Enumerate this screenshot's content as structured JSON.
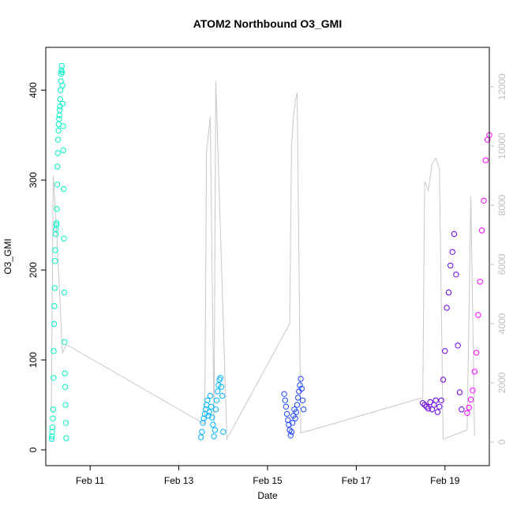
{
  "chart_data": {
    "type": "scatter",
    "title": "ATOM2 Northbound O3_GMI",
    "xlabel": "Date",
    "ylabel": "O3_GMI",
    "x_axis": {
      "kind": "date",
      "range": [
        "2017-02-10",
        "2017-02-20"
      ],
      "ticks": [
        {
          "value": "2017-02-11",
          "label": "Feb 11"
        },
        {
          "value": "2017-02-13",
          "label": "Feb 13"
        },
        {
          "value": "2017-02-15",
          "label": "Feb 15"
        },
        {
          "value": "2017-02-17",
          "label": "Feb 17"
        },
        {
          "value": "2017-02-19",
          "label": "Feb 19"
        }
      ]
    },
    "y_axis": {
      "range": [
        0,
        430
      ],
      "ticks": [
        0,
        100,
        200,
        300,
        400
      ]
    },
    "y2_axis": {
      "range": [
        0,
        12800
      ],
      "ticks": [
        0,
        2000,
        4000,
        6000,
        8000,
        10000,
        12000
      ],
      "color": "#bebebe"
    },
    "grid": false,
    "legend": "none",
    "series": [
      {
        "color": "#00f5c8",
        "points": [
          [
            "2017-02-10T03:10",
            12
          ],
          [
            "2017-02-10T03:20",
            15
          ],
          [
            "2017-02-10T03:30",
            20
          ],
          [
            "2017-02-10T03:40",
            25
          ],
          [
            "2017-02-10T03:50",
            35
          ],
          [
            "2017-02-10T04:00",
            45
          ],
          [
            "2017-02-10T04:10",
            80
          ],
          [
            "2017-02-10T04:20",
            110
          ],
          [
            "2017-02-10T04:30",
            140
          ],
          [
            "2017-02-10T04:40",
            160
          ],
          [
            "2017-02-10T04:50",
            180
          ],
          [
            "2017-02-10T05:00",
            210
          ],
          [
            "2017-02-10T05:10",
            222
          ],
          [
            "2017-02-10T05:20",
            240
          ],
          [
            "2017-02-10T05:30",
            245
          ],
          [
            "2017-02-10T05:40",
            250
          ],
          [
            "2017-02-10T05:50",
            252
          ],
          [
            "2017-02-10T06:00",
            268
          ],
          [
            "2017-02-10T06:10",
            295
          ],
          [
            "2017-02-10T06:20",
            315
          ],
          [
            "2017-02-10T06:30",
            330
          ],
          [
            "2017-02-10T06:40",
            345
          ],
          [
            "2017-02-10T06:50",
            355
          ],
          [
            "2017-02-10T07:00",
            362
          ],
          [
            "2017-02-10T07:10",
            368
          ],
          [
            "2017-02-10T07:20",
            372
          ],
          [
            "2017-02-10T07:30",
            378
          ],
          [
            "2017-02-10T07:40",
            382
          ],
          [
            "2017-02-10T07:50",
            390
          ],
          [
            "2017-02-10T08:00",
            400
          ],
          [
            "2017-02-10T08:10",
            410
          ],
          [
            "2017-02-10T08:20",
            418
          ],
          [
            "2017-02-10T08:30",
            422
          ],
          [
            "2017-02-10T08:40",
            427
          ],
          [
            "2017-02-10T08:50",
            420
          ],
          [
            "2017-02-10T09:00",
            405
          ],
          [
            "2017-02-10T09:10",
            385
          ],
          [
            "2017-02-10T09:20",
            360
          ],
          [
            "2017-02-10T09:30",
            333
          ],
          [
            "2017-02-10T09:40",
            290
          ],
          [
            "2017-02-10T09:50",
            235
          ],
          [
            "2017-02-10T10:00",
            175
          ],
          [
            "2017-02-10T10:10",
            120
          ],
          [
            "2017-02-10T10:20",
            85
          ],
          [
            "2017-02-10T10:30",
            70
          ],
          [
            "2017-02-10T10:40",
            50
          ],
          [
            "2017-02-10T10:50",
            30
          ],
          [
            "2017-02-10T11:00",
            13
          ]
        ]
      },
      {
        "color": "#00b4ff",
        "points": [
          [
            "2017-02-13T12:00",
            14
          ],
          [
            "2017-02-13T12:30",
            20
          ],
          [
            "2017-02-13T13:00",
            30
          ],
          [
            "2017-02-13T13:30",
            35
          ],
          [
            "2017-02-13T14:00",
            40
          ],
          [
            "2017-02-13T14:30",
            45
          ],
          [
            "2017-02-13T15:00",
            50
          ],
          [
            "2017-02-13T15:30",
            55
          ],
          [
            "2017-02-13T16:00",
            38
          ],
          [
            "2017-02-13T16:30",
            42
          ],
          [
            "2017-02-13T17:00",
            60
          ],
          [
            "2017-02-13T17:30",
            48
          ],
          [
            "2017-02-13T18:00",
            36
          ],
          [
            "2017-02-13T18:30",
            28
          ],
          [
            "2017-02-13T19:00",
            15
          ],
          [
            "2017-02-13T19:30",
            22
          ],
          [
            "2017-02-13T20:00",
            45
          ],
          [
            "2017-02-13T20:30",
            55
          ],
          [
            "2017-02-13T21:00",
            65
          ],
          [
            "2017-02-13T21:30",
            72
          ],
          [
            "2017-02-13T22:00",
            78
          ],
          [
            "2017-02-13T22:30",
            80
          ],
          [
            "2017-02-13T23:00",
            70
          ],
          [
            "2017-02-13T23:30",
            60
          ],
          [
            "2017-02-14T00:00",
            20
          ]
        ]
      },
      {
        "color": "#1e46ff",
        "points": [
          [
            "2017-02-15T09:00",
            62
          ],
          [
            "2017-02-15T09:30",
            55
          ],
          [
            "2017-02-15T10:00",
            48
          ],
          [
            "2017-02-15T10:30",
            40
          ],
          [
            "2017-02-15T11:00",
            33
          ],
          [
            "2017-02-15T11:30",
            28
          ],
          [
            "2017-02-15T12:00",
            22
          ],
          [
            "2017-02-15T12:30",
            16
          ],
          [
            "2017-02-15T13:00",
            20
          ],
          [
            "2017-02-15T13:30",
            30
          ],
          [
            "2017-02-15T14:00",
            38
          ],
          [
            "2017-02-15T14:30",
            45
          ],
          [
            "2017-02-15T15:00",
            35
          ],
          [
            "2017-02-15T15:30",
            42
          ],
          [
            "2017-02-15T16:00",
            50
          ],
          [
            "2017-02-15T16:30",
            58
          ],
          [
            "2017-02-15T17:00",
            65
          ],
          [
            "2017-02-15T17:30",
            72
          ],
          [
            "2017-02-15T18:00",
            79
          ],
          [
            "2017-02-15T18:30",
            68
          ],
          [
            "2017-02-15T19:00",
            55
          ],
          [
            "2017-02-15T19:30",
            45
          ]
        ]
      },
      {
        "color": "#6a00e6",
        "points": [
          [
            "2017-02-18T12:00",
            52
          ],
          [
            "2017-02-18T13:00",
            50
          ],
          [
            "2017-02-18T14:00",
            48
          ],
          [
            "2017-02-18T15:00",
            46
          ],
          [
            "2017-02-18T16:00",
            53
          ],
          [
            "2017-02-18T17:00",
            45
          ],
          [
            "2017-02-18T18:00",
            50
          ],
          [
            "2017-02-18T19:00",
            55
          ],
          [
            "2017-02-18T20:00",
            42
          ],
          [
            "2017-02-18T21:00",
            48
          ],
          [
            "2017-02-18T22:00",
            55
          ],
          [
            "2017-02-18T23:00",
            78
          ],
          [
            "2017-02-19T00:00",
            110
          ],
          [
            "2017-02-19T01:00",
            158
          ],
          [
            "2017-02-19T02:00",
            175
          ],
          [
            "2017-02-19T03:00",
            205
          ],
          [
            "2017-02-19T04:00",
            220
          ],
          [
            "2017-02-19T05:00",
            240
          ],
          [
            "2017-02-19T06:00",
            195
          ],
          [
            "2017-02-19T07:00",
            116
          ],
          [
            "2017-02-19T08:00",
            64
          ],
          [
            "2017-02-19T09:00",
            45
          ]
        ]
      },
      {
        "color": "#ff00ff",
        "points": [
          [
            "2017-02-19T12:00",
            41
          ],
          [
            "2017-02-19T13:00",
            47
          ],
          [
            "2017-02-19T14:00",
            56
          ],
          [
            "2017-02-19T15:00",
            66
          ],
          [
            "2017-02-19T16:00",
            87
          ],
          [
            "2017-02-19T17:00",
            108
          ],
          [
            "2017-02-19T18:00",
            150
          ],
          [
            "2017-02-19T19:00",
            187
          ],
          [
            "2017-02-19T20:00",
            244
          ],
          [
            "2017-02-19T21:00",
            277
          ],
          [
            "2017-02-19T22:00",
            322
          ],
          [
            "2017-02-19T23:00",
            345
          ],
          [
            "2017-02-20T00:00",
            350
          ]
        ]
      }
    ],
    "secondary_line": {
      "color": "#c8c8c8",
      "axis": "right",
      "points": [
        [
          "2017-02-10T03:00",
          1000
        ],
        [
          "2017-02-10T04:00",
          9000
        ],
        [
          "2017-02-10T06:00",
          7000
        ],
        [
          "2017-02-10T09:00",
          3000
        ],
        [
          "2017-02-10T11:00",
          3300
        ],
        [
          "2017-02-13T14:00",
          600
        ],
        [
          "2017-02-13T15:00",
          9800
        ],
        [
          "2017-02-13T17:00",
          11000
        ],
        [
          "2017-02-13T19:00",
          600
        ],
        [
          "2017-02-13T20:00",
          12200
        ],
        [
          "2017-02-14T02:00",
          100
        ],
        [
          "2017-02-15T12:00",
          4000
        ],
        [
          "2017-02-15T13:00",
          10000
        ],
        [
          "2017-02-15T14:00",
          11000
        ],
        [
          "2017-02-15T15:00",
          11500
        ],
        [
          "2017-02-15T16:00",
          11800
        ],
        [
          "2017-02-15T18:00",
          300
        ],
        [
          "2017-02-18T12:00",
          1500
        ],
        [
          "2017-02-18T13:00",
          8800
        ],
        [
          "2017-02-18T15:00",
          8500
        ],
        [
          "2017-02-18T17:00",
          9400
        ],
        [
          "2017-02-18T19:00",
          9600
        ],
        [
          "2017-02-18T21:00",
          9200
        ],
        [
          "2017-02-18T23:00",
          100
        ],
        [
          "2017-02-19T12:00",
          400
        ],
        [
          "2017-02-19T14:00",
          8300
        ],
        [
          "2017-02-19T16:00",
          200
        ]
      ]
    }
  }
}
